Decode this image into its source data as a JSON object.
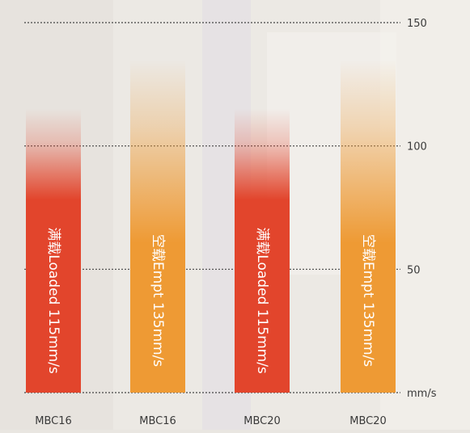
{
  "chart_data": {
    "type": "bar",
    "categories": [
      "MBC16",
      "MBC16",
      "MBC20",
      "MBC20"
    ],
    "values": [
      115,
      135,
      115,
      135
    ],
    "bar_labels": [
      "满载Loaded 115mm/s",
      "空载Empt 135mm/s",
      "满载Loaded 115mm/s",
      "空载Empt 135mm/s"
    ],
    "bar_colors": [
      "#e2452c",
      "#ee9a34",
      "#e2452c",
      "#ee9a34"
    ],
    "yticks": [
      {
        "value": 150,
        "label": "150"
      },
      {
        "value": 100,
        "label": "100"
      },
      {
        "value": 50,
        "label": "50"
      },
      {
        "value": 0,
        "label": "mm/s"
      }
    ],
    "ylim": [
      0,
      150
    ],
    "grid": true,
    "title": "",
    "xlabel": "",
    "ylabel": ""
  }
}
